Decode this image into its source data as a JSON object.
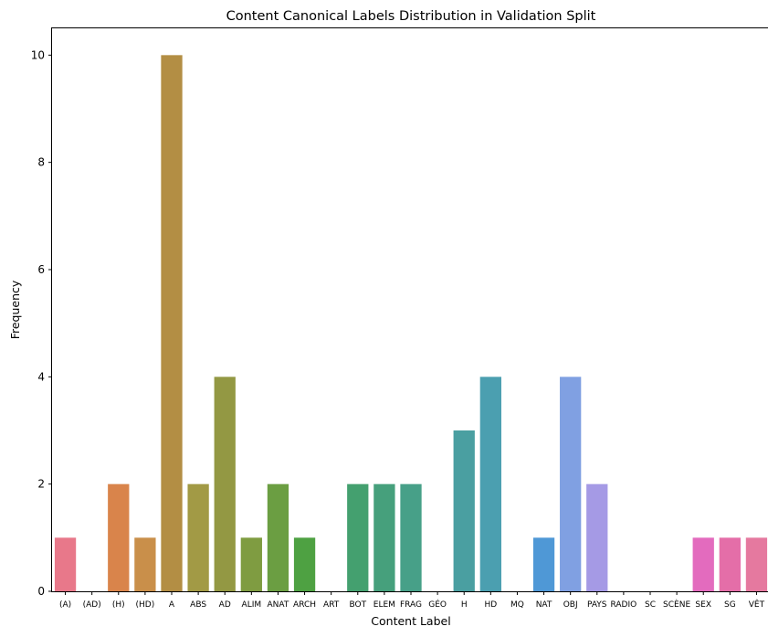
{
  "chart_data": {
    "type": "bar",
    "title": "Content Canonical Labels Distribution in Validation Split",
    "xlabel": "Content Label",
    "ylabel": "Frequency",
    "ylim": [
      0,
      10.5
    ],
    "yticks": [
      0,
      2,
      4,
      6,
      8,
      10
    ],
    "grid": false,
    "legend": "none",
    "categories": [
      "(A)",
      "(AD)",
      "(H)",
      "(HD)",
      "A",
      "ABS",
      "AD",
      "ALIM",
      "ANAT",
      "ARCH",
      "ART",
      "BOT",
      "ELEM",
      "FRAG",
      "GÉO",
      "H",
      "HD",
      "MQ",
      "NAT",
      "OBJ",
      "PAYS",
      "RADIO",
      "SC",
      "SCÈNE",
      "SEX",
      "SG",
      "VÊT"
    ],
    "values": [
      1,
      0,
      2,
      1,
      10,
      2,
      4,
      1,
      2,
      1,
      0,
      2,
      2,
      2,
      0,
      3,
      4,
      0,
      1,
      4,
      2,
      0,
      0,
      0,
      1,
      1,
      1
    ],
    "colors": [
      "#e8788a",
      "#e47f6e",
      "#d9844b",
      "#c98f4a",
      "#b38e44",
      "#a29a45",
      "#939843",
      "#7f9c41",
      "#6b9e42",
      "#4ea142",
      "#49a15b",
      "#44a06f",
      "#46a07c",
      "#47a088",
      "#49a093",
      "#4a9fa1",
      "#4b9fb0",
      "#4c9cc0",
      "#4f98d6",
      "#80a0e2",
      "#a59ae5",
      "#c38ce3",
      "#d778de",
      "#e166cf",
      "#e36bbe",
      "#e46ea8",
      "#e5799f"
    ]
  }
}
